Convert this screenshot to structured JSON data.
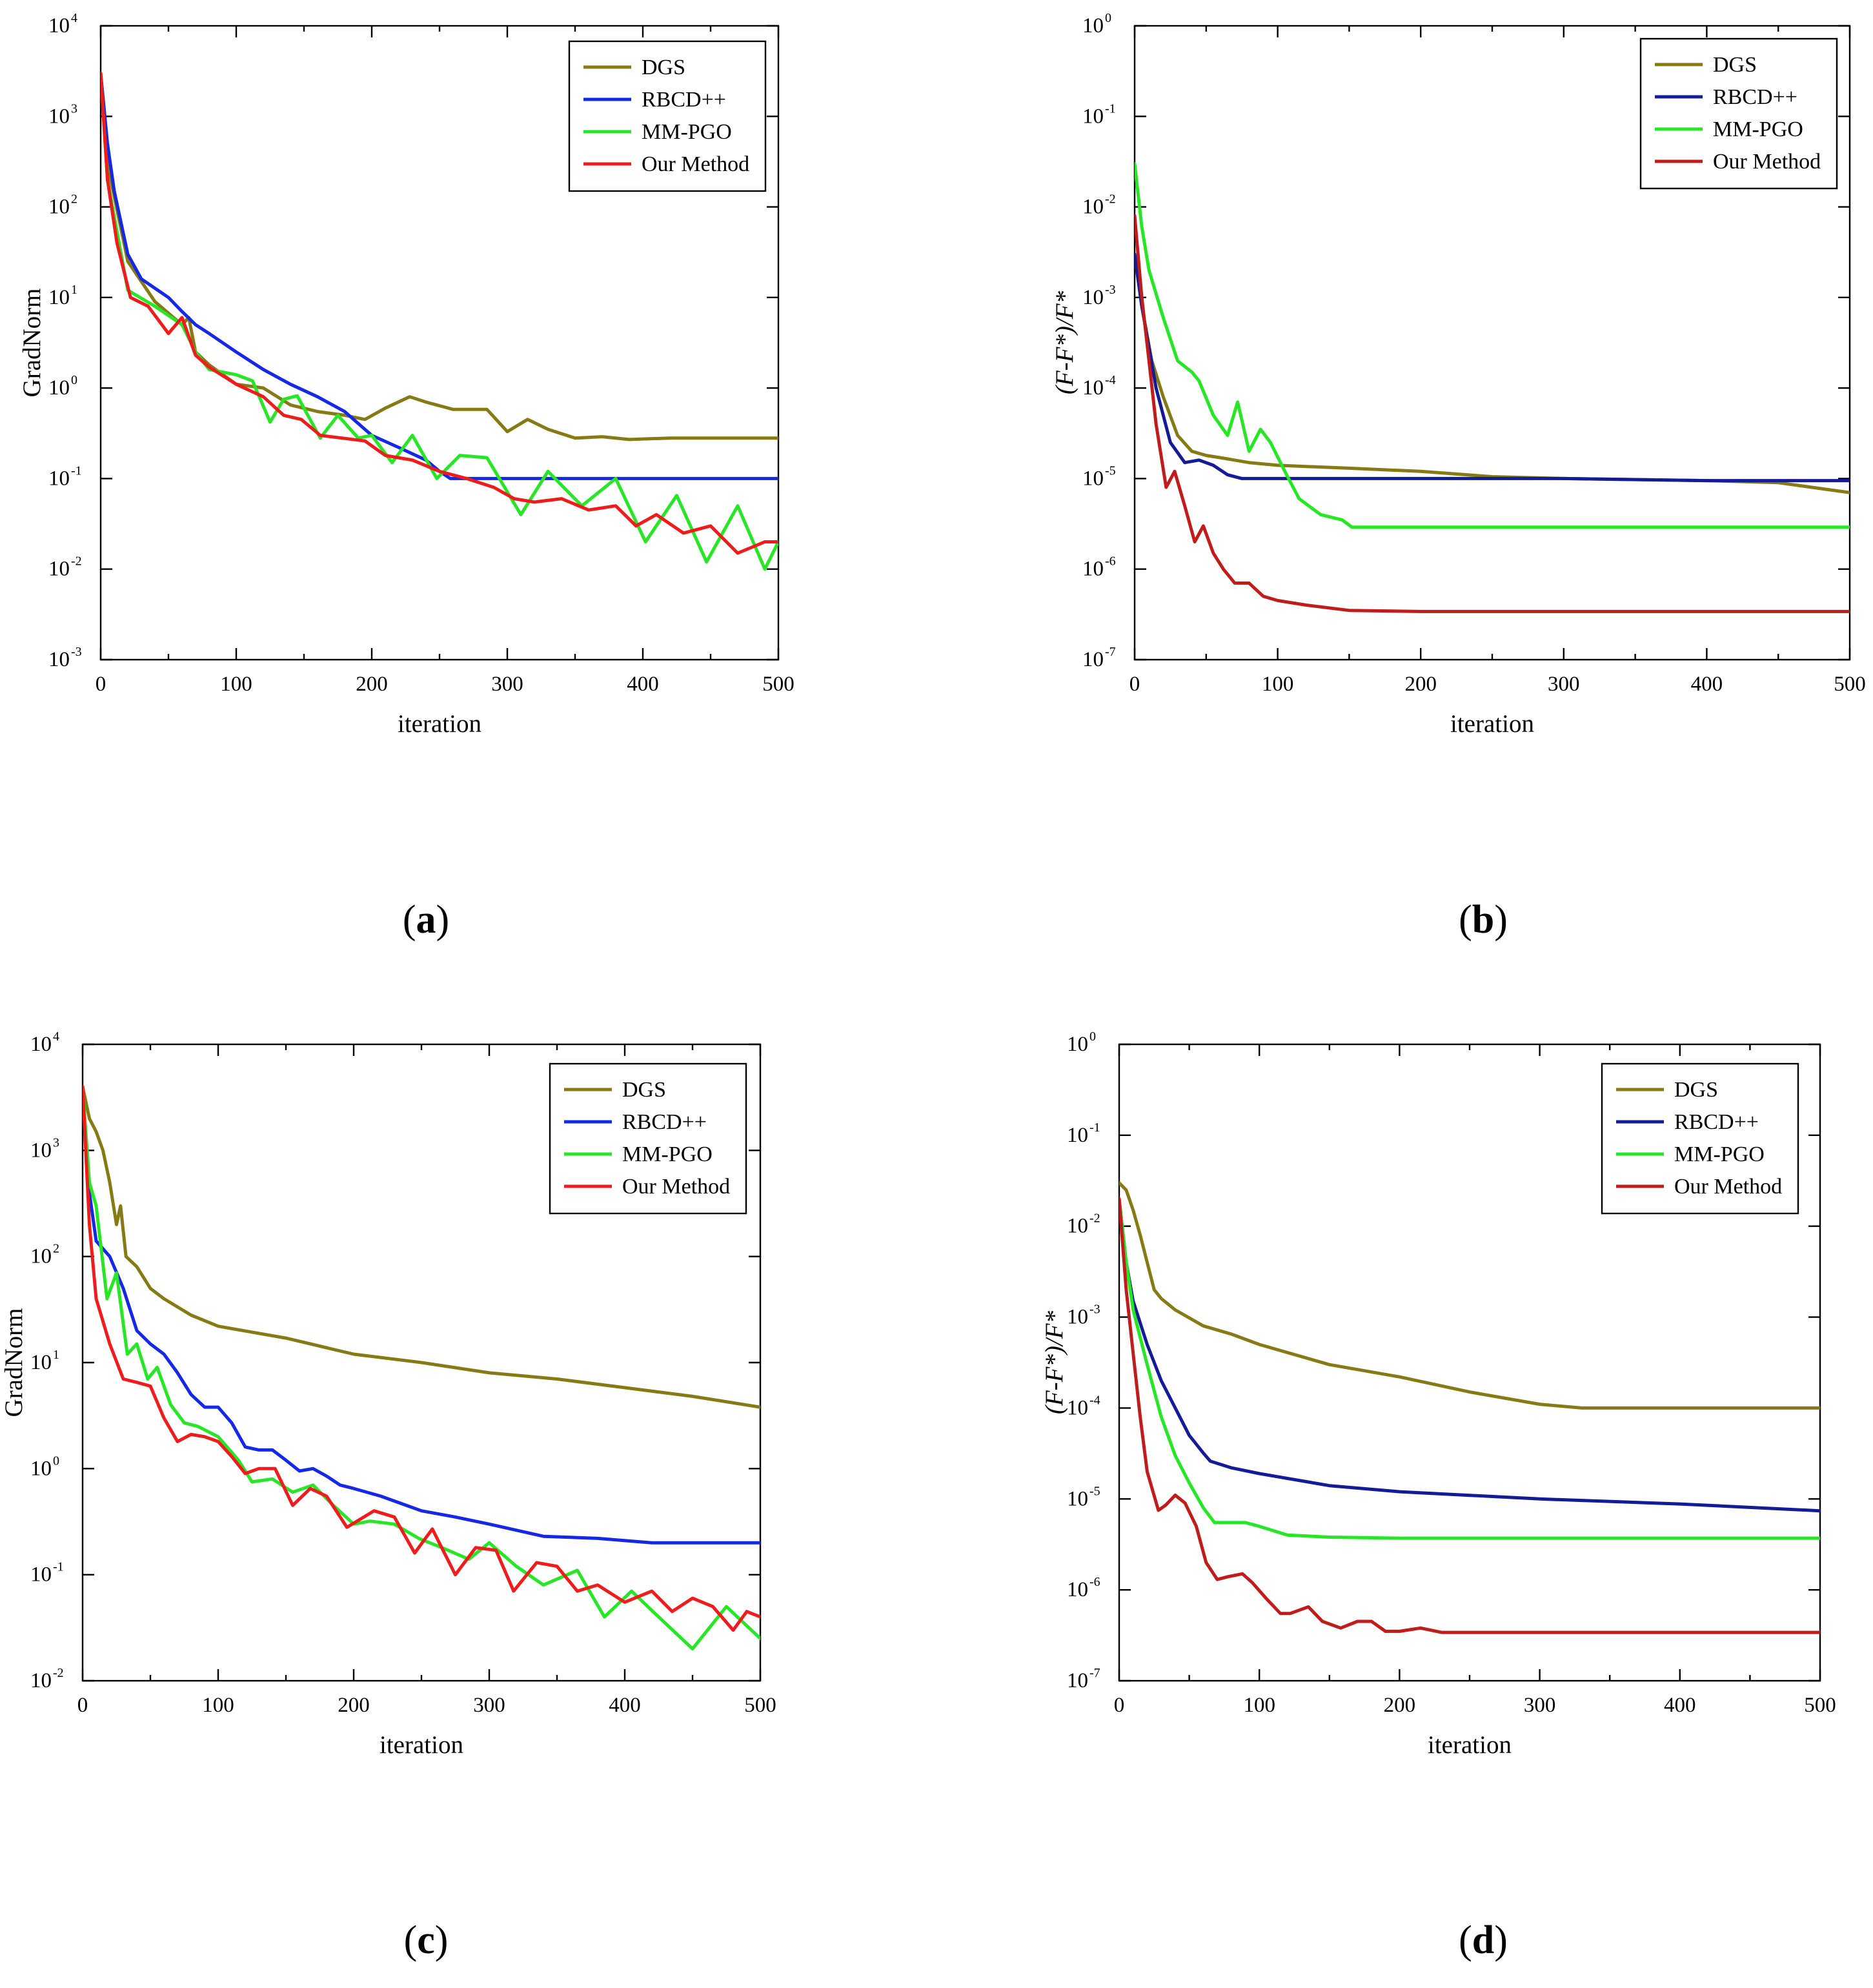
{
  "colors": {
    "dgs": "#857a14",
    "rbcd_blue": "#1428e6",
    "rbcd_navy": "#141b96",
    "mmpgo": "#26e626",
    "ours_red": "#ee1c1c",
    "ours_darkred": "#c01c1c"
  },
  "chart_data": [
    {
      "panel": "(a)",
      "caption_open": "(",
      "caption_letter": "a",
      "caption_close": ")",
      "type": "line",
      "ylabel": "GradNorm",
      "xlabel": "iteration",
      "yscale": "log",
      "xlim": [
        0,
        500
      ],
      "ylim_exp": [
        -3,
        4
      ],
      "xticks": [
        "0",
        "100",
        "200",
        "300",
        "400",
        "500"
      ],
      "ytick_exps": [
        "-3",
        "-2",
        "-1",
        "0",
        "1",
        "2",
        "3",
        "4"
      ],
      "legend_position": "top-right",
      "series": [
        {
          "name": "DGS",
          "color": "#857a14",
          "x": [
            0,
            5,
            20,
            40,
            60,
            65,
            70,
            80,
            100,
            120,
            140,
            160,
            180,
            195,
            210,
            228,
            240,
            260,
            285,
            300,
            315,
            330,
            350,
            370,
            390,
            420,
            450,
            500
          ],
          "y": [
            3000,
            300,
            25,
            9,
            5,
            6,
            2.5,
            1.8,
            1.1,
            1.0,
            0.65,
            0.55,
            0.5,
            0.45,
            0.6,
            0.8,
            0.7,
            0.58,
            0.58,
            0.33,
            0.45,
            0.35,
            0.28,
            0.29,
            0.27,
            0.28,
            0.28,
            0.28
          ]
        },
        {
          "name": "RBCD++",
          "color": "#1428e6",
          "x": [
            0,
            5,
            10,
            20,
            30,
            50,
            60,
            70,
            80,
            100,
            120,
            140,
            160,
            180,
            200,
            220,
            240,
            250,
            258,
            300,
            400,
            500
          ],
          "y": [
            3000,
            500,
            150,
            30,
            16,
            10,
            7,
            5,
            4,
            2.5,
            1.6,
            1.1,
            0.8,
            0.55,
            0.3,
            0.22,
            0.16,
            0.12,
            0.1,
            0.1,
            0.1,
            0.1
          ]
        },
        {
          "name": "MM-PGO",
          "color": "#26e626",
          "x": [
            0,
            5,
            20,
            40,
            60,
            70,
            80,
            100,
            112,
            125,
            135,
            145,
            162,
            175,
            190,
            200,
            215,
            230,
            248,
            265,
            285,
            310,
            330,
            355,
            380,
            402,
            425,
            447,
            470,
            490,
            500
          ],
          "y": [
            3000,
            200,
            12,
            8,
            5,
            2.5,
            1.6,
            1.4,
            1.2,
            0.42,
            0.75,
            0.82,
            0.28,
            0.5,
            0.28,
            0.3,
            0.15,
            0.3,
            0.1,
            0.18,
            0.17,
            0.04,
            0.12,
            0.05,
            0.1,
            0.02,
            0.065,
            0.012,
            0.05,
            0.01,
            0.02
          ]
        },
        {
          "name": "Our Method",
          "color": "#ee1c1c",
          "x": [
            0,
            5,
            12,
            22,
            35,
            50,
            60,
            70,
            80,
            100,
            120,
            135,
            148,
            162,
            178,
            195,
            210,
            230,
            250,
            270,
            290,
            305,
            320,
            340,
            360,
            380,
            395,
            410,
            430,
            450,
            470,
            490,
            500
          ],
          "y": [
            3000,
            200,
            40,
            10,
            8,
            4,
            6,
            2.3,
            1.7,
            1.1,
            0.8,
            0.5,
            0.45,
            0.3,
            0.28,
            0.26,
            0.18,
            0.16,
            0.12,
            0.1,
            0.08,
            0.06,
            0.055,
            0.06,
            0.045,
            0.05,
            0.03,
            0.04,
            0.025,
            0.03,
            0.015,
            0.02,
            0.02
          ]
        }
      ]
    },
    {
      "panel": "(b)",
      "caption_open": "(",
      "caption_letter": "b",
      "caption_close": ")",
      "type": "line",
      "ylabel": "(F-F*)/F*",
      "xlabel": "iteration",
      "yscale": "log",
      "xlim": [
        0,
        500
      ],
      "ylim_exp": [
        -7,
        0
      ],
      "xticks": [
        "0",
        "100",
        "200",
        "300",
        "400",
        "500"
      ],
      "ytick_exps": [
        "-7",
        "-6",
        "-5",
        "-4",
        "-3",
        "-2",
        "-1",
        "0"
      ],
      "legend_position": "top-right",
      "series": [
        {
          "name": "DGS",
          "color": "#857a14",
          "x": [
            0,
            5,
            12,
            20,
            30,
            40,
            50,
            60,
            80,
            100,
            150,
            200,
            250,
            300,
            400,
            450,
            500
          ],
          "y": [
            0.003,
            0.0008,
            0.0002,
            8e-05,
            3e-05,
            2e-05,
            1.8e-05,
            1.7e-05,
            1.5e-05,
            1.4e-05,
            1.3e-05,
            1.2e-05,
            1.05e-05,
            1e-05,
            9.5e-06,
            9e-06,
            7e-06
          ]
        },
        {
          "name": "RBCD++",
          "color": "#141b96",
          "x": [
            0,
            5,
            15,
            25,
            35,
            45,
            55,
            65,
            75,
            90,
            120,
            200,
            300,
            400,
            500
          ],
          "y": [
            0.003,
            0.0008,
            0.0001,
            2.5e-05,
            1.5e-05,
            1.6e-05,
            1.4e-05,
            1.1e-05,
            1e-05,
            1e-05,
            1e-05,
            1e-05,
            1e-05,
            9.5e-06,
            9.5e-06
          ]
        },
        {
          "name": "MM-PGO",
          "color": "#26e626",
          "x": [
            0,
            5,
            10,
            20,
            30,
            40,
            45,
            55,
            65,
            72,
            80,
            88,
            95,
            105,
            115,
            130,
            145,
            152,
            160,
            200,
            300,
            400,
            500
          ],
          "y": [
            0.03,
            0.006,
            0.002,
            0.0006,
            0.0002,
            0.00015,
            0.00012,
            5e-05,
            3e-05,
            7e-05,
            2e-05,
            3.5e-05,
            2.5e-05,
            1.2e-05,
            6e-06,
            4e-06,
            3.5e-06,
            2.9e-06,
            2.9e-06,
            2.9e-06,
            2.9e-06,
            2.9e-06,
            2.9e-06
          ]
        },
        {
          "name": "Our Method",
          "color": "#c01c1c",
          "x": [
            0,
            5,
            10,
            15,
            22,
            28,
            35,
            42,
            48,
            55,
            62,
            70,
            80,
            90,
            100,
            120,
            150,
            200,
            300,
            400,
            500
          ],
          "y": [
            0.008,
            0.001,
            0.0002,
            4e-05,
            8e-06,
            1.2e-05,
            5e-06,
            2e-06,
            3e-06,
            1.5e-06,
            1e-06,
            7e-07,
            7e-07,
            5e-07,
            4.5e-07,
            4e-07,
            3.5e-07,
            3.4e-07,
            3.4e-07,
            3.4e-07,
            3.4e-07
          ]
        }
      ]
    },
    {
      "panel": "(c)",
      "caption_open": "(",
      "caption_letter": "c",
      "caption_close": ")",
      "type": "line",
      "ylabel": "GradNorm",
      "xlabel": "iteration",
      "yscale": "log",
      "xlim": [
        0,
        500
      ],
      "ylim_exp": [
        -2,
        4
      ],
      "xticks": [
        "0",
        "100",
        "200",
        "300",
        "400",
        "500"
      ],
      "ytick_exps": [
        "-2",
        "-1",
        "0",
        "1",
        "2",
        "3",
        "4"
      ],
      "legend_position": "top-right",
      "series": [
        {
          "name": "DGS",
          "color": "#857a14",
          "x": [
            0,
            5,
            10,
            15,
            20,
            25,
            28,
            32,
            40,
            50,
            60,
            80,
            100,
            150,
            200,
            250,
            300,
            350,
            400,
            450,
            500
          ],
          "y": [
            4000,
            2000,
            1500,
            1000,
            500,
            200,
            300,
            100,
            80,
            50,
            40,
            28,
            22,
            17,
            12,
            10,
            8,
            7,
            5.8,
            4.8,
            3.8
          ]
        },
        {
          "name": "RBCD++",
          "color": "#1428e6",
          "x": [
            0,
            5,
            10,
            20,
            30,
            40,
            50,
            60,
            70,
            80,
            90,
            100,
            110,
            120,
            130,
            140,
            150,
            160,
            170,
            180,
            190,
            200,
            220,
            250,
            275,
            300,
            340,
            380,
            420,
            460,
            500
          ],
          "y": [
            4000,
            400,
            140,
            100,
            50,
            20,
            15,
            12,
            8,
            5,
            3.8,
            3.8,
            2.7,
            1.6,
            1.5,
            1.5,
            1.2,
            0.95,
            1.0,
            0.85,
            0.7,
            0.65,
            0.55,
            0.4,
            0.35,
            0.3,
            0.23,
            0.22,
            0.2,
            0.2,
            0.2
          ]
        },
        {
          "name": "MM-PGO",
          "color": "#26e626",
          "x": [
            0,
            5,
            10,
            18,
            25,
            33,
            40,
            48,
            55,
            65,
            75,
            85,
            100,
            115,
            125,
            140,
            155,
            170,
            185,
            200,
            212,
            230,
            248,
            265,
            285,
            300,
            320,
            340,
            365,
            385,
            405,
            425,
            450,
            475,
            500
          ],
          "y": [
            4000,
            500,
            300,
            40,
            70,
            12,
            15,
            7,
            9,
            4,
            2.7,
            2.5,
            2,
            1.2,
            0.75,
            0.8,
            0.6,
            0.7,
            0.45,
            0.3,
            0.32,
            0.3,
            0.22,
            0.18,
            0.14,
            0.2,
            0.12,
            0.08,
            0.11,
            0.04,
            0.07,
            0.04,
            0.02,
            0.05,
            0.025
          ]
        },
        {
          "name": "Our Method",
          "color": "#ee1c1c",
          "x": [
            0,
            5,
            10,
            20,
            30,
            40,
            50,
            60,
            70,
            80,
            90,
            100,
            110,
            120,
            130,
            142,
            155,
            168,
            180,
            195,
            215,
            230,
            245,
            258,
            275,
            290,
            305,
            318,
            335,
            350,
            365,
            380,
            400,
            420,
            435,
            450,
            465,
            480,
            490,
            500
          ],
          "y": [
            4000,
            200,
            40,
            15,
            7,
            6.5,
            6,
            3,
            1.8,
            2.1,
            2.0,
            1.8,
            1.3,
            0.9,
            1.0,
            1.0,
            0.45,
            0.65,
            0.55,
            0.28,
            0.4,
            0.35,
            0.16,
            0.27,
            0.1,
            0.18,
            0.17,
            0.07,
            0.13,
            0.12,
            0.07,
            0.08,
            0.055,
            0.07,
            0.045,
            0.06,
            0.05,
            0.03,
            0.045,
            0.04
          ]
        }
      ]
    },
    {
      "panel": "(d)",
      "caption_open": "(",
      "caption_letter": "d",
      "caption_close": ")",
      "type": "line",
      "ylabel": "(F-F*)/F*",
      "xlabel": "iteration",
      "yscale": "log",
      "xlim": [
        0,
        500
      ],
      "ylim_exp": [
        -7,
        0
      ],
      "xticks": [
        "0",
        "100",
        "200",
        "300",
        "400",
        "500"
      ],
      "ytick_exps": [
        "-7",
        "-6",
        "-5",
        "-4",
        "-3",
        "-2",
        "-1",
        "0"
      ],
      "legend_position": "top-right",
      "series": [
        {
          "name": "DGS",
          "color": "#857a14",
          "x": [
            0,
            5,
            10,
            15,
            20,
            25,
            30,
            40,
            60,
            80,
            100,
            150,
            200,
            250,
            300,
            330,
            350,
            400,
            450,
            500
          ],
          "y": [
            0.03,
            0.025,
            0.015,
            0.008,
            0.004,
            0.002,
            0.0016,
            0.0012,
            0.0008,
            0.00065,
            0.0005,
            0.0003,
            0.00022,
            0.00015,
            0.00011,
            0.0001,
            0.0001,
            0.0001,
            0.0001,
            0.0001
          ]
        },
        {
          "name": "RBCD++",
          "color": "#141b96",
          "x": [
            0,
            5,
            10,
            20,
            30,
            40,
            50,
            60,
            65,
            80,
            100,
            150,
            200,
            300,
            400,
            500
          ],
          "y": [
            0.02,
            0.004,
            0.0015,
            0.0005,
            0.0002,
            0.0001,
            5e-05,
            3.2e-05,
            2.6e-05,
            2.2e-05,
            1.9e-05,
            1.4e-05,
            1.2e-05,
            1e-05,
            8.8e-06,
            7.4e-06
          ]
        },
        {
          "name": "MM-PGO",
          "color": "#26e626",
          "x": [
            0,
            5,
            10,
            20,
            30,
            40,
            50,
            60,
            68,
            75,
            90,
            100,
            120,
            150,
            200,
            300,
            400,
            500
          ],
          "y": [
            0.02,
            0.004,
            0.0012,
            0.0003,
            8e-05,
            3e-05,
            1.5e-05,
            8e-06,
            5.5e-06,
            5.5e-06,
            5.5e-06,
            5e-06,
            4e-06,
            3.8e-06,
            3.7e-06,
            3.7e-06,
            3.7e-06,
            3.7e-06
          ]
        },
        {
          "name": "Our Method",
          "color": "#c01c1c",
          "x": [
            0,
            5,
            10,
            15,
            20,
            28,
            33,
            40,
            47,
            55,
            62,
            70,
            78,
            88,
            95,
            105,
            115,
            122,
            135,
            145,
            158,
            170,
            180,
            190,
            200,
            215,
            230,
            260,
            300,
            400,
            500
          ],
          "y": [
            0.02,
            0.002,
            0.0004,
            8e-05,
            2e-05,
            7.5e-06,
            8.5e-06,
            1.1e-05,
            9e-06,
            5e-06,
            2e-06,
            1.3e-06,
            1.4e-06,
            1.5e-06,
            1.2e-06,
            8e-07,
            5.5e-07,
            5.5e-07,
            6.5e-07,
            4.5e-07,
            3.8e-07,
            4.5e-07,
            4.5e-07,
            3.5e-07,
            3.5e-07,
            3.8e-07,
            3.4e-07,
            3.4e-07,
            3.4e-07,
            3.4e-07,
            3.4e-07
          ]
        }
      ]
    }
  ]
}
